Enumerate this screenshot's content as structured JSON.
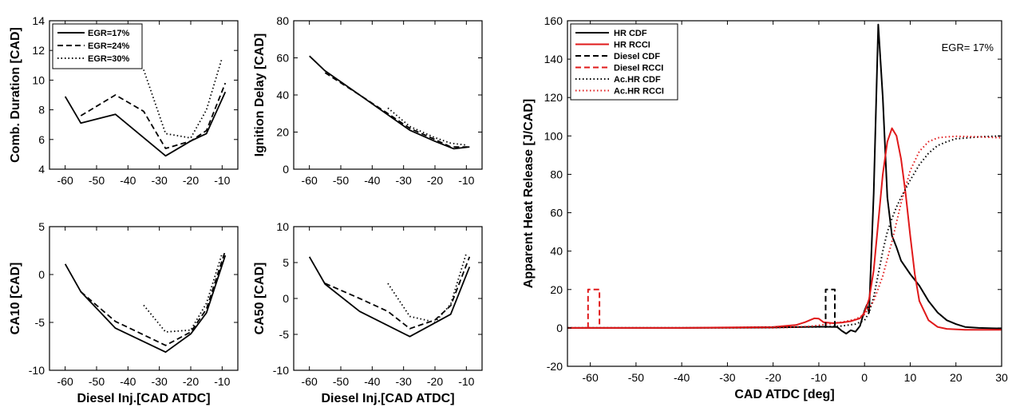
{
  "chart_data": [
    {
      "id": "comb_duration",
      "type": "line",
      "ylabel": "Comb. Duration [CAD]",
      "xlabel": "",
      "xlim": [
        -65,
        -5
      ],
      "ylim": [
        4,
        14
      ],
      "xticks": [
        -60,
        -50,
        -40,
        -30,
        -20,
        -10
      ],
      "yticks": [
        4,
        6,
        8,
        10,
        12,
        14
      ],
      "legend_position": "top-left",
      "series": [
        {
          "name": "EGR=17%",
          "style": "solid",
          "color": "#000000",
          "x": [
            -60,
            -55,
            -44,
            -28,
            -20,
            -15,
            -9
          ],
          "y": [
            8.9,
            7.1,
            7.7,
            4.9,
            5.9,
            6.4,
            9.2
          ]
        },
        {
          "name": "EGR=24%",
          "style": "dashed",
          "color": "#000000",
          "x": [
            -55,
            -44,
            -35,
            -28,
            -20,
            -15,
            -9
          ],
          "y": [
            7.6,
            9.0,
            7.9,
            5.4,
            5.9,
            6.6,
            9.8
          ]
        },
        {
          "name": "EGR=30%",
          "style": "dotted",
          "color": "#000000",
          "x": [
            -35,
            -28,
            -20,
            -15,
            -10
          ],
          "y": [
            10.7,
            6.4,
            6.1,
            8.0,
            11.5
          ]
        }
      ]
    },
    {
      "id": "ignition_delay",
      "type": "line",
      "ylabel": "Ignition Delay [CAD]",
      "xlabel": "",
      "xlim": [
        -65,
        -5
      ],
      "ylim": [
        0,
        80
      ],
      "xticks": [
        -60,
        -50,
        -40,
        -30,
        -20,
        -10
      ],
      "yticks": [
        0,
        20,
        40,
        60,
        80
      ],
      "series": [
        {
          "name": "EGR=17%",
          "style": "solid",
          "color": "#000000",
          "x": [
            -60,
            -55,
            -44,
            -28,
            -20,
            -14,
            -9
          ],
          "y": [
            61,
            53,
            40,
            21,
            15,
            11,
            12
          ]
        },
        {
          "name": "EGR=24%",
          "style": "dashed",
          "color": "#000000",
          "x": [
            -55,
            -44,
            -35,
            -28,
            -20,
            -15,
            -9
          ],
          "y": [
            52,
            40,
            30,
            22,
            16,
            12,
            12
          ]
        },
        {
          "name": "EGR=30%",
          "style": "dotted",
          "color": "#000000",
          "x": [
            -35,
            -28,
            -20,
            -15,
            -10
          ],
          "y": [
            33,
            23,
            17,
            14,
            13
          ]
        }
      ]
    },
    {
      "id": "ca10",
      "type": "line",
      "ylabel": "CA10 [CAD]",
      "xlabel": "Diesel Inj.[CAD ATDC]",
      "xlim": [
        -65,
        -5
      ],
      "ylim": [
        -10,
        5
      ],
      "xticks": [
        -60,
        -50,
        -40,
        -30,
        -20,
        -10
      ],
      "yticks": [
        -10,
        -5,
        0,
        5
      ],
      "series": [
        {
          "name": "EGR=17%",
          "style": "solid",
          "color": "#000000",
          "x": [
            -60,
            -55,
            -44,
            -28,
            -20,
            -15,
            -9
          ],
          "y": [
            1.1,
            -1.8,
            -5.6,
            -8.1,
            -6.2,
            -4.0,
            2.0
          ]
        },
        {
          "name": "EGR=24%",
          "style": "dashed",
          "color": "#000000",
          "x": [
            -55,
            -44,
            -35,
            -28,
            -20,
            -15,
            -9
          ],
          "y": [
            -1.8,
            -4.9,
            -6.3,
            -7.4,
            -6.0,
            -3.6,
            2.5
          ]
        },
        {
          "name": "EGR=30%",
          "style": "dotted",
          "color": "#000000",
          "x": [
            -35,
            -28,
            -20,
            -15,
            -10
          ],
          "y": [
            -3.2,
            -6.0,
            -5.8,
            -3.0,
            2.2
          ]
        }
      ]
    },
    {
      "id": "ca50",
      "type": "line",
      "ylabel": "CA50 [CAD]",
      "xlabel": "Diesel Inj.[CAD ATDC]",
      "xlim": [
        -65,
        -5
      ],
      "ylim": [
        -10,
        10
      ],
      "xticks": [
        -60,
        -50,
        -40,
        -30,
        -20,
        -10
      ],
      "yticks": [
        -10,
        -5,
        0,
        5,
        10
      ],
      "series": [
        {
          "name": "EGR=17%",
          "style": "solid",
          "color": "#000000",
          "x": [
            -60,
            -55,
            -44,
            -28,
            -20,
            -15,
            -9
          ],
          "y": [
            5.8,
            2.0,
            -1.8,
            -5.3,
            -3.4,
            -2.2,
            4.4
          ]
        },
        {
          "name": "EGR=24%",
          "style": "dashed",
          "color": "#000000",
          "x": [
            -55,
            -44,
            -35,
            -28,
            -20,
            -15,
            -9
          ],
          "y": [
            2.1,
            0.0,
            -1.8,
            -4.2,
            -3.0,
            -1.0,
            5.8
          ]
        },
        {
          "name": "EGR=30%",
          "style": "dotted",
          "color": "#000000",
          "x": [
            -35,
            -28,
            -20,
            -15,
            -10
          ],
          "y": [
            2.1,
            -2.5,
            -3.3,
            -0.8,
            6.3
          ]
        }
      ]
    },
    {
      "id": "heat_release",
      "type": "line",
      "ylabel": "Apparent Heat Release [J/CAD]",
      "xlabel": "CAD ATDC [deg]",
      "xlim": [
        -65,
        30
      ],
      "ylim": [
        -20,
        160
      ],
      "xticks": [
        -60,
        -50,
        -40,
        -30,
        -20,
        -10,
        0,
        10,
        20,
        30
      ],
      "yticks": [
        -20,
        0,
        20,
        40,
        60,
        80,
        100,
        120,
        140,
        160
      ],
      "annotation": "EGR= 17%",
      "legend_position": "top-left",
      "series": [
        {
          "name": "HR CDF",
          "style": "solid",
          "color": "#000000",
          "x": [
            -65,
            -40,
            -20,
            -10,
            -6,
            -5,
            -4,
            -3,
            -2,
            -1,
            0,
            0.5,
            1,
            2,
            3,
            4,
            5,
            6,
            7,
            8,
            10,
            12,
            14,
            16,
            18,
            20,
            22,
            25,
            28,
            30
          ],
          "y": [
            0,
            0,
            0.2,
            0.6,
            0.5,
            -1.5,
            -3.0,
            -1.2,
            -2.0,
            1.0,
            9.0,
            12.0,
            8.0,
            70.0,
            158.0,
            120.0,
            68.0,
            48.0,
            42.0,
            35.0,
            28.0,
            22.0,
            14.0,
            8.0,
            4.0,
            2.0,
            0.5,
            0.0,
            -0.2,
            -0.3
          ]
        },
        {
          "name": "HR RCCI",
          "style": "solid",
          "color": "#e0191a",
          "x": [
            -65,
            -40,
            -20,
            -15,
            -13,
            -11,
            -10,
            -9,
            -7,
            -5,
            -3,
            -1,
            0,
            1,
            2,
            3,
            4,
            5,
            6,
            7,
            8,
            9,
            10,
            11,
            12,
            14,
            16,
            18,
            22,
            30
          ],
          "y": [
            0,
            0,
            0.5,
            1.5,
            3.0,
            5.0,
            4.8,
            3.0,
            2.5,
            2.8,
            3.5,
            5.0,
            8.0,
            15.0,
            30.0,
            55.0,
            80.0,
            97.0,
            104.0,
            100.0,
            88.0,
            70.0,
            48.0,
            28.0,
            14.0,
            4.0,
            0.5,
            -0.5,
            -1.0,
            -1.0
          ]
        },
        {
          "name": "Diesel CDF",
          "style": "dashed",
          "color": "#000000",
          "x": [
            -8.5,
            -8.5,
            -6.5,
            -6.5
          ],
          "y": [
            0,
            20,
            20,
            0
          ]
        },
        {
          "name": "Diesel RCCI",
          "style": "dashed",
          "color": "#e0191a",
          "x": [
            -60.5,
            -60.5,
            -58,
            -58
          ],
          "y": [
            0,
            20,
            20,
            0
          ]
        },
        {
          "name": "Ac.HR CDF",
          "style": "dotted",
          "color": "#000000",
          "x": [
            -65,
            -30,
            -10,
            -5,
            -2,
            0,
            1,
            2,
            3,
            4,
            5,
            6,
            7,
            8,
            10,
            12,
            14,
            16,
            18,
            20,
            25,
            30
          ],
          "y": [
            0,
            0,
            0.5,
            1.0,
            2.0,
            4.0,
            8.0,
            16.0,
            28.0,
            40.0,
            50.0,
            57.0,
            63.0,
            68.0,
            77.0,
            85.0,
            91.0,
            95.0,
            97.0,
            98.5,
            99.5,
            100.0
          ]
        },
        {
          "name": "Ac.HR RCCI",
          "style": "dotted",
          "color": "#e0191a",
          "x": [
            -65,
            -20,
            -12,
            -8,
            -5,
            -2,
            0,
            2,
            4,
            6,
            8,
            10,
            12,
            14,
            16,
            18,
            20,
            25,
            30
          ],
          "y": [
            0,
            0,
            0.8,
            2.0,
            3.0,
            4.5,
            7.0,
            14.0,
            27.0,
            45.0,
            65.0,
            82.0,
            92.0,
            97.0,
            99.0,
            99.5,
            99.8,
            99.5,
            99.0
          ]
        }
      ]
    }
  ]
}
